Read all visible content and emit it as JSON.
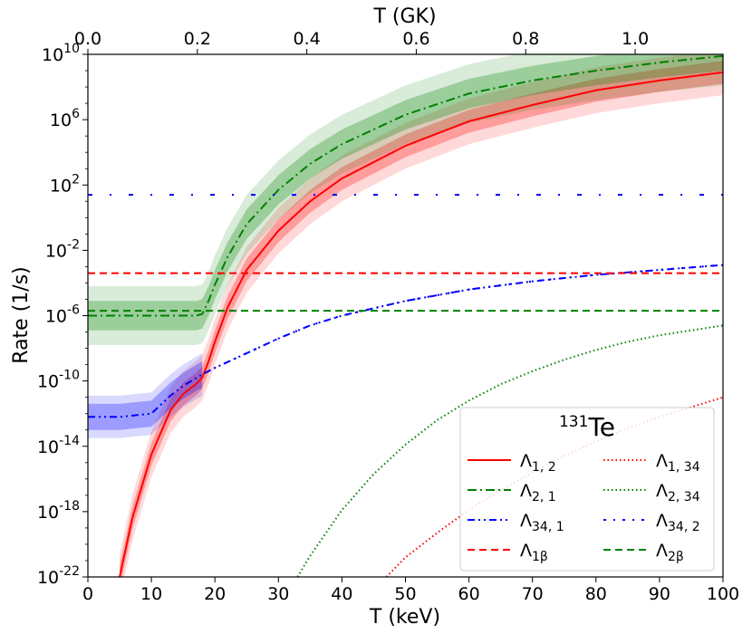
{
  "chart_data": {
    "type": "line",
    "title": "131Te",
    "title_isotope_mass": "131",
    "title_element": "Te",
    "xlabel": "T (keV)",
    "ylabel": "Rate (1/s)",
    "x2label": "T (GK)",
    "xlim": [
      0,
      100
    ],
    "ylim_log10": [
      -22,
      10
    ],
    "x_ticks": [
      "0",
      "10",
      "20",
      "30",
      "40",
      "50",
      "60",
      "70",
      "80",
      "90",
      "100"
    ],
    "x_tick_values": [
      0,
      10,
      20,
      30,
      40,
      50,
      60,
      70,
      80,
      90,
      100
    ],
    "x2_ticks": [
      "0.0",
      "0.2",
      "0.4",
      "0.6",
      "0.8",
      "1.0"
    ],
    "x2_tick_values_gk": [
      0.0,
      0.2,
      0.4,
      0.6,
      0.8,
      1.0
    ],
    "y_tick_exponents": [
      -22,
      -18,
      -14,
      -10,
      -6,
      -2,
      2,
      6,
      10
    ],
    "y_tick_labels": [
      "-22",
      "-18",
      "-14",
      "-10",
      "-6",
      "-2",
      "2",
      "6",
      "10"
    ],
    "y_tick_base": "10",
    "legend": {
      "location": "lower-right",
      "entries": [
        {
          "label": "Λ1, 2",
          "symbol": "Λ",
          "sub": "1, 2"
        },
        {
          "label": "Λ1, 34",
          "symbol": "Λ",
          "sub": "1, 34"
        },
        {
          "label": "Λ2, 1",
          "symbol": "Λ",
          "sub": "2, 1"
        },
        {
          "label": "Λ2, 34",
          "symbol": "Λ",
          "sub": "2, 34"
        },
        {
          "label": "Λ34, 1",
          "symbol": "Λ",
          "sub": "34, 1"
        },
        {
          "label": "Λ34, 2",
          "symbol": "Λ",
          "sub": "34, 2"
        },
        {
          "label": "Λ1β",
          "symbol": "Λ",
          "sub": "1β"
        },
        {
          "label": "Λ2β",
          "symbol": "Λ",
          "sub": "2β"
        }
      ]
    },
    "series": [
      {
        "name": "Λ1, 2",
        "color": "#ff0000",
        "style": "solid",
        "x": [
          5,
          7,
          10,
          13,
          15,
          17,
          18,
          19,
          20,
          22,
          25,
          30,
          35,
          40,
          50,
          60,
          70,
          80,
          90,
          100
        ],
        "log10_y": [
          -22,
          -18.4,
          -14.5,
          -11.8,
          -10.8,
          -10.2,
          -9.8,
          -8.8,
          -7.6,
          -5.5,
          -3.2,
          -0.8,
          1.0,
          2.4,
          4.4,
          5.9,
          6.9,
          7.8,
          8.4,
          8.9
        ],
        "band_inner_log10": 0.7,
        "band_outer_log10": 1.4
      },
      {
        "name": "Λ1, 34",
        "color": "#ff0000",
        "style": "dotted",
        "x": [
          47,
          50,
          55,
          60,
          65,
          70,
          75,
          80,
          85,
          90,
          95,
          100
        ],
        "log10_y": [
          -22,
          -20.8,
          -19.3,
          -17.9,
          -16.7,
          -15.6,
          -14.6,
          -13.7,
          -12.9,
          -12.2,
          -11.6,
          -11.0
        ]
      },
      {
        "name": "Λ2, 1",
        "color": "#008000",
        "style": "dashdot",
        "x": [
          0,
          5,
          10,
          15,
          17,
          18,
          19,
          20,
          22,
          25,
          30,
          35,
          40,
          50,
          60,
          70,
          80,
          90,
          100
        ],
        "log10_y": [
          -6.0,
          -6.0,
          -6.0,
          -6.0,
          -6.0,
          -5.9,
          -5.1,
          -4.1,
          -2.4,
          -0.4,
          1.7,
          3.3,
          4.5,
          6.3,
          7.6,
          8.4,
          9.0,
          9.5,
          9.9
        ],
        "band_inner_log10": 0.9,
        "band_outer_log10": 1.8
      },
      {
        "name": "Λ2, 34",
        "color": "#008000",
        "style": "dotted",
        "x": [
          33,
          35,
          40,
          45,
          50,
          55,
          60,
          65,
          70,
          75,
          80,
          85,
          90,
          95,
          100
        ],
        "log10_y": [
          -22,
          -20.7,
          -17.9,
          -15.7,
          -13.9,
          -12.4,
          -11.2,
          -10.2,
          -9.4,
          -8.7,
          -8.1,
          -7.6,
          -7.2,
          -6.9,
          -6.6
        ]
      },
      {
        "name": "Λ34, 1",
        "color": "#0000ff",
        "style": "dashdotdot",
        "x": [
          0,
          5,
          10,
          13,
          15,
          18,
          20,
          25,
          30,
          35,
          40,
          50,
          60,
          70,
          80,
          90,
          100
        ],
        "log10_y": [
          -12.2,
          -12.2,
          -12.0,
          -10.9,
          -10.3,
          -9.6,
          -9.2,
          -8.3,
          -7.4,
          -6.6,
          -6.0,
          -5.1,
          -4.4,
          -3.9,
          -3.5,
          -3.2,
          -2.9
        ],
        "band_inner_log10": 0.8,
        "band_outer_log10": 1.3,
        "band_until_x": 18
      },
      {
        "name": "Λ34, 2",
        "color": "#0000ff",
        "style": "sparse-dashdot",
        "x": [
          0,
          100
        ],
        "log10_y": [
          1.4,
          1.4
        ]
      },
      {
        "name": "Λ1β",
        "color": "#ff0000",
        "style": "dashed",
        "x": [
          0,
          100
        ],
        "log10_y": [
          -3.4,
          -3.4
        ]
      },
      {
        "name": "Λ2β",
        "color": "#008000",
        "style": "dashed",
        "x": [
          0,
          100
        ],
        "log10_y": [
          -5.7,
          -5.7
        ]
      }
    ],
    "gk_per_kev": 0.011605
  }
}
